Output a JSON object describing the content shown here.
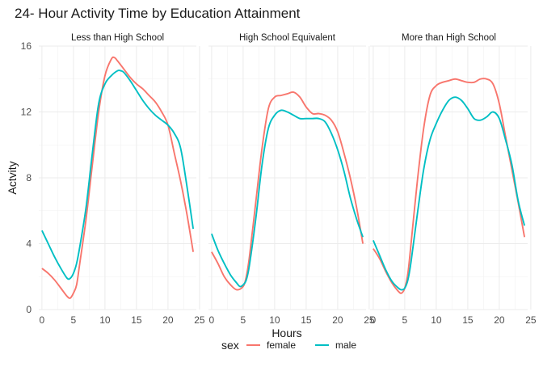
{
  "chart_data": {
    "type": "line",
    "title": "24- Hour Activity Time by Education Attainment",
    "xlabel": "Hours",
    "ylabel": "Actvity",
    "xlim": [
      -0.5,
      24.5
    ],
    "ylim": [
      0,
      16
    ],
    "xticks": [
      0,
      5,
      10,
      15,
      20,
      25
    ],
    "yticks": [
      0,
      4,
      8,
      12,
      16
    ],
    "grid": true,
    "legend": {
      "title": "sex",
      "position": "bottom"
    },
    "series_colors": {
      "female": "#F8766D",
      "male": "#00BFC4"
    },
    "panels": [
      {
        "label": "Less than High School",
        "series": [
          {
            "name": "female",
            "x": [
              0,
              1,
              2,
              3,
              4,
              4.5,
              5,
              5.5,
              6,
              7,
              8,
              9,
              10,
              11,
              11.5,
              12,
              13,
              14,
              15,
              16,
              17,
              18,
              19,
              20,
              21,
              22,
              23,
              24
            ],
            "y": [
              2.5,
              2.2,
              1.8,
              1.3,
              0.8,
              0.7,
              1.0,
              1.5,
              2.8,
              5.5,
              8.8,
              12.0,
              14.2,
              15.2,
              15.3,
              15.1,
              14.6,
              14.1,
              13.7,
              13.4,
              13.0,
              12.6,
              12.0,
              11.2,
              9.5,
              7.8,
              5.8,
              3.5
            ]
          },
          {
            "name": "male",
            "x": [
              0,
              1,
              2,
              3,
              4,
              4.5,
              5,
              5.5,
              6,
              7,
              8,
              9,
              10,
              11,
              12,
              12.5,
              13,
              14,
              15,
              16,
              17,
              18,
              19,
              20,
              21,
              22,
              23,
              24
            ],
            "y": [
              4.8,
              4.0,
              3.2,
              2.5,
              1.9,
              1.9,
              2.2,
              2.8,
              3.8,
              6.2,
              9.5,
              12.5,
              13.7,
              14.2,
              14.5,
              14.5,
              14.4,
              13.9,
              13.3,
              12.7,
              12.2,
              11.8,
              11.5,
              11.2,
              10.7,
              9.8,
              7.5,
              4.9
            ]
          }
        ]
      },
      {
        "label": "High School Equivalent",
        "series": [
          {
            "name": "female",
            "x": [
              0,
              1,
              2,
              3,
              4,
              5,
              5.5,
              6,
              7,
              8,
              9,
              10,
              11,
              12,
              13,
              14,
              15,
              16,
              17,
              18,
              19,
              20,
              21,
              22,
              23,
              24
            ],
            "y": [
              3.5,
              2.8,
              2.0,
              1.5,
              1.2,
              1.4,
              2.0,
              3.2,
              6.5,
              9.8,
              12.2,
              12.9,
              13.0,
              13.1,
              13.2,
              12.9,
              12.3,
              11.9,
              11.9,
              11.8,
              11.5,
              10.8,
              9.5,
              8.0,
              6.2,
              4.0
            ]
          },
          {
            "name": "male",
            "x": [
              0,
              1,
              2,
              3,
              4,
              4.5,
              5,
              5.5,
              6,
              7,
              8,
              9,
              10,
              11,
              12,
              13,
              14,
              15,
              16,
              17,
              18,
              19,
              20,
              21,
              22,
              23,
              24
            ],
            "y": [
              4.6,
              3.6,
              2.8,
              2.1,
              1.6,
              1.4,
              1.5,
              1.8,
              2.7,
              5.5,
              8.8,
              11.0,
              11.8,
              12.1,
              12.0,
              11.8,
              11.6,
              11.6,
              11.6,
              11.6,
              11.4,
              10.7,
              9.7,
              8.4,
              6.8,
              5.5,
              4.4
            ]
          }
        ]
      },
      {
        "label": "More than High School",
        "series": [
          {
            "name": "female",
            "x": [
              0,
              1,
              2,
              3,
              4,
              4.5,
              5,
              5.5,
              6,
              7,
              8,
              9,
              10,
              11,
              12,
              13,
              14,
              15,
              16,
              17,
              18,
              19,
              20,
              21,
              22,
              23,
              24
            ],
            "y": [
              3.7,
              3.1,
              2.3,
              1.6,
              1.1,
              1.0,
              1.3,
              2.2,
              4.0,
              7.8,
              11.0,
              13.0,
              13.6,
              13.8,
              13.9,
              14.0,
              13.9,
              13.8,
              13.8,
              14.0,
              14.0,
              13.7,
              12.5,
              10.5,
              8.5,
              6.5,
              4.4
            ]
          },
          {
            "name": "male",
            "x": [
              0,
              1,
              2,
              3,
              4,
              4.5,
              5,
              5.5,
              6,
              7,
              8,
              9,
              10,
              11,
              12,
              13,
              14,
              15,
              16,
              17,
              18,
              19,
              20,
              21,
              22,
              23,
              24
            ],
            "y": [
              4.2,
              3.3,
              2.4,
              1.7,
              1.3,
              1.2,
              1.3,
              1.8,
              2.9,
              5.8,
              8.5,
              10.3,
              11.3,
              12.1,
              12.7,
              12.9,
              12.7,
              12.2,
              11.6,
              11.5,
              11.7,
              12.0,
              11.6,
              10.3,
              8.8,
              6.6,
              5.1
            ]
          }
        ]
      }
    ]
  }
}
